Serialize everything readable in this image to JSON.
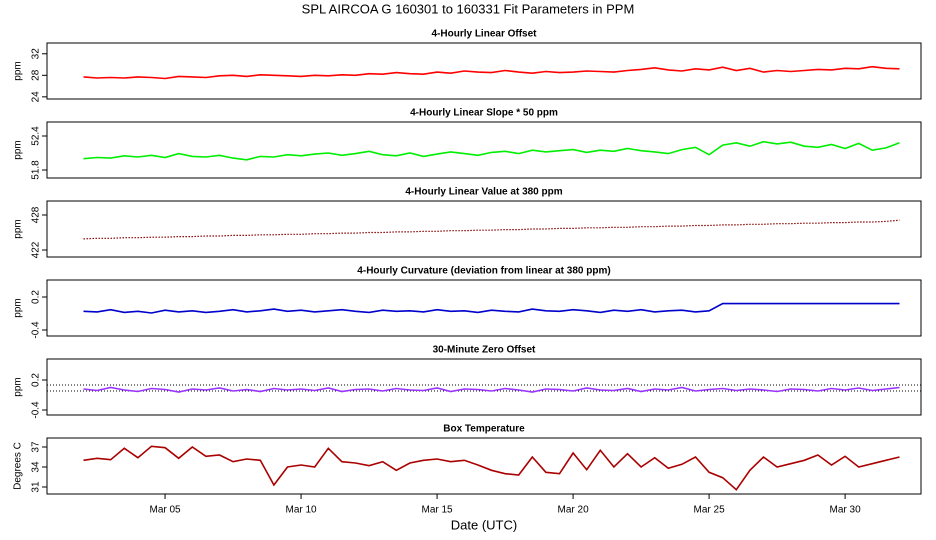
{
  "title": "SPL   AIRCOA G   160301 to 160331   Fit Parameters in PPM",
  "chart_data": [
    {
      "type": "line",
      "title": "4-Hourly Linear Offset",
      "ylabel": "ppm",
      "xlim": [
        0.66,
        32.79
      ],
      "ylim": [
        23.6,
        34.0
      ],
      "yticks": [
        24,
        28,
        32
      ],
      "x": [
        2,
        2.5,
        3,
        3.5,
        4,
        4.5,
        5,
        5.5,
        6,
        6.5,
        7,
        7.5,
        8,
        8.5,
        9,
        9.5,
        10,
        10.5,
        11,
        11.5,
        12,
        12.5,
        13,
        13.5,
        14,
        14.5,
        15,
        15.5,
        16,
        16.5,
        17,
        17.5,
        18,
        18.5,
        19,
        19.5,
        20,
        20.5,
        21,
        21.5,
        22,
        22.5,
        23,
        23.5,
        24,
        24.5,
        25,
        25.5,
        26,
        26.5,
        27,
        27.5,
        28,
        28.5,
        29,
        29.5,
        30,
        30.5,
        31,
        31.5,
        32
      ],
      "series": [
        {
          "color": "#ff0000",
          "values": [
            27.7,
            27.5,
            27.6,
            27.5,
            27.7,
            27.6,
            27.4,
            27.8,
            27.7,
            27.6,
            27.9,
            28.0,
            27.8,
            28.1,
            28.0,
            27.9,
            27.8,
            28.0,
            27.9,
            28.1,
            28.0,
            28.3,
            28.2,
            28.5,
            28.3,
            28.2,
            28.6,
            28.4,
            28.8,
            28.6,
            28.5,
            28.9,
            28.6,
            28.4,
            28.7,
            28.5,
            28.6,
            28.8,
            28.7,
            28.6,
            28.9,
            29.1,
            29.4,
            29.0,
            28.8,
            29.2,
            29.0,
            29.5,
            28.9,
            29.3,
            28.6,
            28.9,
            28.7,
            28.9,
            29.1,
            29.0,
            29.3,
            29.2,
            29.6,
            29.3,
            29.2
          ]
        }
      ]
    },
    {
      "type": "line",
      "title": "4-Hourly Linear Slope * 50 ppm",
      "ylabel": "ppm",
      "xlim": [
        0.66,
        32.79
      ],
      "ylim": [
        51.659,
        52.647
      ],
      "yticks": [
        51.8,
        52.4
      ],
      "x": [
        2,
        2.5,
        3,
        3.5,
        4,
        4.5,
        5,
        5.5,
        6,
        6.5,
        7,
        7.5,
        8,
        8.5,
        9,
        9.5,
        10,
        10.5,
        11,
        11.5,
        12,
        12.5,
        13,
        13.5,
        14,
        14.5,
        15,
        15.5,
        16,
        16.5,
        17,
        17.5,
        18,
        18.5,
        19,
        19.5,
        20,
        20.5,
        21,
        21.5,
        22,
        22.5,
        23,
        23.5,
        24,
        24.5,
        25,
        25.5,
        26,
        26.5,
        27,
        27.5,
        28,
        28.5,
        29,
        29.5,
        30,
        30.5,
        31,
        31.5,
        32
      ],
      "series": [
        {
          "color": "#00ee00",
          "values": [
            52.0,
            52.02,
            52.01,
            52.05,
            52.03,
            52.06,
            52.02,
            52.09,
            52.04,
            52.03,
            52.06,
            52.01,
            51.98,
            52.04,
            52.03,
            52.07,
            52.05,
            52.08,
            52.1,
            52.06,
            52.09,
            52.13,
            52.07,
            52.05,
            52.1,
            52.04,
            52.08,
            52.12,
            52.09,
            52.06,
            52.11,
            52.13,
            52.09,
            52.15,
            52.12,
            52.14,
            52.16,
            52.11,
            52.15,
            52.13,
            52.18,
            52.14,
            52.12,
            52.09,
            52.16,
            52.2,
            52.07,
            52.24,
            52.28,
            52.22,
            52.3,
            52.26,
            52.29,
            52.22,
            52.2,
            52.25,
            52.18,
            52.27,
            52.15,
            52.19,
            52.28
          ]
        }
      ]
    },
    {
      "type": "line",
      "title": "4-Hourly Linear Value at 380 ppm",
      "ylabel": "ppm",
      "xlim": [
        0.66,
        32.79
      ],
      "ylim": [
        420.8,
        430.4
      ],
      "yticks": [
        422,
        428
      ],
      "x": [
        2,
        2.5,
        3,
        3.5,
        4,
        4.5,
        5,
        5.5,
        6,
        6.5,
        7,
        7.5,
        8,
        8.5,
        9,
        9.5,
        10,
        10.5,
        11,
        11.5,
        12,
        12.5,
        13,
        13.5,
        14,
        14.5,
        15,
        15.5,
        16,
        16.5,
        17,
        17.5,
        18,
        18.5,
        19,
        19.5,
        20,
        20.5,
        21,
        21.5,
        22,
        22.5,
        23,
        23.5,
        24,
        24.5,
        25,
        25.5,
        26,
        26.5,
        27,
        27.5,
        28,
        28.5,
        29,
        29.5,
        30,
        30.5,
        31,
        31.5,
        32
      ],
      "series": [
        {
          "color": "#8b0000",
          "dotted": true,
          "values": [
            423.9,
            424.0,
            424.0,
            424.1,
            424.1,
            424.2,
            424.2,
            424.3,
            424.3,
            424.4,
            424.4,
            424.5,
            424.5,
            424.6,
            424.6,
            424.7,
            424.7,
            424.8,
            424.8,
            424.9,
            424.9,
            425.0,
            425.0,
            425.1,
            425.1,
            425.2,
            425.2,
            425.3,
            425.3,
            425.4,
            425.4,
            425.5,
            425.5,
            425.6,
            425.6,
            425.7,
            425.7,
            425.8,
            425.8,
            425.9,
            425.9,
            426.0,
            426.0,
            426.1,
            426.1,
            426.2,
            426.2,
            426.3,
            426.3,
            426.4,
            426.4,
            426.5,
            426.5,
            426.6,
            426.6,
            426.7,
            426.7,
            426.8,
            426.8,
            426.9,
            427.1
          ]
        }
      ]
    },
    {
      "type": "line",
      "title": "4-Hourly Curvature (deviation from linear at 380 ppm)",
      "ylabel": "ppm",
      "xlim": [
        0.66,
        32.79
      ],
      "ylim": [
        -0.509,
        0.509
      ],
      "yticks": [
        -0.4,
        0.2
      ],
      "x": [
        2,
        2.5,
        3,
        3.5,
        4,
        4.5,
        5,
        5.5,
        6,
        6.5,
        7,
        7.5,
        8,
        8.5,
        9,
        9.5,
        10,
        10.5,
        11,
        11.5,
        12,
        12.5,
        13,
        13.5,
        14,
        14.5,
        15,
        15.5,
        16,
        16.5,
        17,
        17.5,
        18,
        18.5,
        19,
        19.5,
        20,
        20.5,
        21,
        21.5,
        22,
        22.5,
        23,
        23.5,
        24,
        24.5,
        25,
        25.5,
        26,
        26.5,
        27,
        27.5,
        28,
        28.5,
        29,
        29.5,
        30,
        30.5,
        31,
        31.5,
        32
      ],
      "series": [
        {
          "color": "#0000cc",
          "values": [
            -0.06,
            -0.07,
            -0.03,
            -0.08,
            -0.06,
            -0.09,
            -0.04,
            -0.07,
            -0.05,
            -0.08,
            -0.06,
            -0.03,
            -0.07,
            -0.05,
            -0.02,
            -0.06,
            -0.04,
            -0.07,
            -0.05,
            -0.03,
            -0.06,
            -0.08,
            -0.04,
            -0.06,
            -0.05,
            -0.07,
            -0.03,
            -0.06,
            -0.05,
            -0.08,
            -0.04,
            -0.06,
            -0.07,
            -0.02,
            -0.05,
            -0.06,
            -0.03,
            -0.05,
            -0.08,
            -0.04,
            -0.06,
            -0.03,
            -0.07,
            -0.05,
            -0.04,
            -0.07,
            -0.05,
            0.08,
            0.08,
            0.08,
            0.08,
            0.08,
            0.08,
            0.08,
            0.08,
            0.08,
            0.08,
            0.08,
            0.08,
            0.08,
            0.08
          ]
        }
      ]
    },
    {
      "type": "line",
      "title": "30-Minute Zero Offset",
      "ylabel": "ppm",
      "xlim": [
        0.66,
        32.79
      ],
      "ylim": [
        -0.5,
        0.62
      ],
      "yticks": [
        -0.4,
        0.2
      ],
      "reference_lines": [
        0.1,
        -0.02
      ],
      "x": [
        2,
        2.5,
        3,
        3.5,
        4,
        4.5,
        5,
        5.5,
        6,
        6.5,
        7,
        7.5,
        8,
        8.5,
        9,
        9.5,
        10,
        10.5,
        11,
        11.5,
        12,
        12.5,
        13,
        13.5,
        14,
        14.5,
        15,
        15.5,
        16,
        16.5,
        17,
        17.5,
        18,
        18.5,
        19,
        19.5,
        20,
        20.5,
        21,
        21.5,
        22,
        22.5,
        23,
        23.5,
        24,
        24.5,
        25,
        25.5,
        26,
        26.5,
        27,
        27.5,
        28,
        28.5,
        29,
        29.5,
        30,
        30.5,
        31,
        31.5,
        32
      ],
      "series": [
        {
          "color": "#9933ff",
          "values": [
            0.02,
            -0.01,
            0.05,
            0.0,
            -0.03,
            0.03,
            0.01,
            -0.04,
            0.02,
            0.0,
            0.04,
            -0.02,
            0.01,
            -0.03,
            0.03,
            0.0,
            0.02,
            -0.01,
            0.04,
            -0.03,
            0.01,
            0.02,
            -0.02,
            0.03,
            0.0,
            -0.01,
            0.04,
            -0.03,
            0.02,
            0.01,
            -0.02,
            0.03,
            0.0,
            -0.04,
            0.02,
            0.01,
            -0.02,
            0.04,
            0.0,
            -0.01,
            0.03,
            -0.03,
            0.02,
            0.0,
            0.05,
            -0.02,
            0.01,
            0.03,
            -0.01,
            0.02,
            0.0,
            -0.03,
            0.02,
            0.01,
            -0.02,
            0.03,
            0.0,
            0.04,
            -0.01,
            0.02,
            0.05
          ]
        }
      ]
    },
    {
      "type": "line",
      "title": "Box Temperature",
      "ylabel": "Degrees C",
      "xlabel": "Date (UTC)",
      "xlim": [
        0.66,
        32.79
      ],
      "ylim": [
        29.95,
        38.35
      ],
      "yticks": [
        31,
        34,
        37
      ],
      "xticks": [
        {
          "value": 5,
          "label": "Mar 05"
        },
        {
          "value": 10,
          "label": "Mar 10"
        },
        {
          "value": 15,
          "label": "Mar 15"
        },
        {
          "value": 20,
          "label": "Mar 20"
        },
        {
          "value": 25,
          "label": "Mar 25"
        },
        {
          "value": 30,
          "label": "Mar 30"
        }
      ],
      "x": [
        2,
        2.5,
        3,
        3.5,
        4,
        4.5,
        5,
        5.5,
        6,
        6.5,
        7,
        7.5,
        8,
        8.5,
        9,
        9.5,
        10,
        10.5,
        11,
        11.5,
        12,
        12.5,
        13,
        13.5,
        14,
        14.5,
        15,
        15.5,
        16,
        16.5,
        17,
        17.5,
        18,
        18.5,
        19,
        19.5,
        20,
        20.5,
        21,
        21.5,
        22,
        22.5,
        23,
        23.5,
        24,
        24.5,
        25,
        25.5,
        26,
        26.5,
        27,
        27.5,
        28,
        28.5,
        29,
        29.5,
        30,
        30.5,
        31,
        31.5,
        32
      ],
      "series": [
        {
          "color": "#aa0000",
          "values": [
            35.0,
            35.3,
            35.1,
            36.8,
            35.4,
            37.1,
            36.9,
            35.3,
            37.0,
            35.6,
            35.8,
            34.8,
            35.2,
            35.0,
            31.3,
            34.0,
            34.3,
            34.0,
            36.8,
            34.8,
            34.6,
            34.2,
            34.8,
            33.5,
            34.6,
            35.0,
            35.2,
            34.8,
            35.0,
            34.3,
            33.5,
            33.0,
            32.8,
            35.5,
            33.2,
            33.0,
            36.1,
            33.6,
            36.5,
            34.0,
            36.0,
            34.0,
            35.4,
            33.8,
            34.4,
            35.5,
            33.2,
            32.4,
            30.6,
            33.5,
            35.5,
            34.0,
            34.5,
            35.0,
            35.8,
            34.3,
            35.6,
            34.0,
            34.5,
            35.0,
            35.5
          ]
        }
      ]
    }
  ]
}
